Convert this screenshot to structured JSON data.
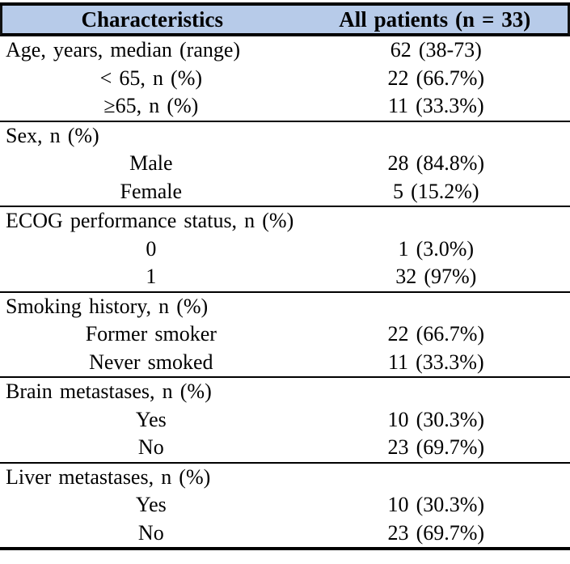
{
  "header": {
    "characteristics": "Characteristics",
    "all_patients": "All patients (n = 33)"
  },
  "sections": [
    {
      "rows": [
        {
          "label": "Age, years, median (range)",
          "value": "62 (38-73)"
        },
        {
          "label": "< 65, n (%)",
          "value": "22 (66.7%)"
        },
        {
          "label": "≥65, n (%)",
          "value": "11 (33.3%)"
        }
      ]
    },
    {
      "rows": [
        {
          "label": "Sex, n (%)",
          "value": ""
        },
        {
          "label": "Male",
          "value": "28 (84.8%)"
        },
        {
          "label": "Female",
          "value": "5 (15.2%)"
        }
      ]
    },
    {
      "rows": [
        {
          "label": "ECOG performance status, n (%)",
          "value": ""
        },
        {
          "label": "0",
          "value": "1 (3.0%)"
        },
        {
          "label": "1",
          "value": "32 (97%)"
        }
      ]
    },
    {
      "rows": [
        {
          "label": "Smoking history, n (%)",
          "value": ""
        },
        {
          "label": "Former smoker",
          "value": "22 (66.7%)"
        },
        {
          "label": "Never smoked",
          "value": "11 (33.3%)"
        }
      ]
    },
    {
      "rows": [
        {
          "label": "Brain metastases, n (%)",
          "value": ""
        },
        {
          "label": "Yes",
          "value": "10 (30.3%)"
        },
        {
          "label": "No",
          "value": "23 (69.7%)"
        }
      ]
    },
    {
      "rows": [
        {
          "label": "Liver metastases, n (%)",
          "value": ""
        },
        {
          "label": "Yes",
          "value": "10 (30.3%)"
        },
        {
          "label": "No",
          "value": "23 (69.7%)"
        }
      ]
    }
  ],
  "colors": {
    "header_bg": "#b7cbe9",
    "border": "#000000",
    "text": "#000000"
  }
}
